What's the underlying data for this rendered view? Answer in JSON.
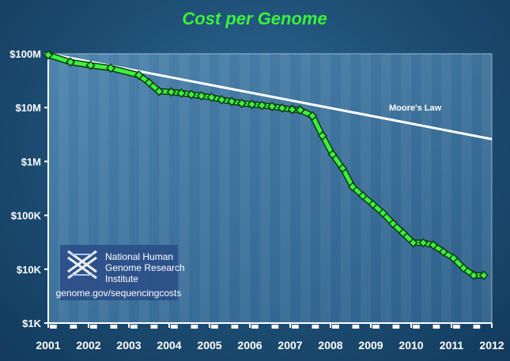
{
  "chart_data": {
    "type": "line",
    "title": "Cost per Genome",
    "y_scale": "log",
    "ylim": [
      1000,
      100000000
    ],
    "xlim": [
      2001,
      2012
    ],
    "yticks": [
      {
        "value": 100000000,
        "label": "$100M"
      },
      {
        "value": 10000000,
        "label": "$10M"
      },
      {
        "value": 1000000,
        "label": "$1M"
      },
      {
        "value": 100000,
        "label": "$100K"
      },
      {
        "value": 10000,
        "label": "$10K"
      },
      {
        "value": 1000,
        "label": "$1K"
      }
    ],
    "xticks": [
      {
        "value": 2001,
        "label": "2001"
      },
      {
        "value": 2002,
        "label": "2002"
      },
      {
        "value": 2003,
        "label": "2003"
      },
      {
        "value": 2004,
        "label": "2004"
      },
      {
        "value": 2005,
        "label": "2005"
      },
      {
        "value": 2006,
        "label": "2006"
      },
      {
        "value": 2007,
        "label": "2007"
      },
      {
        "value": 2008,
        "label": "2008"
      },
      {
        "value": 2009,
        "label": "2009"
      },
      {
        "value": 2010,
        "label": "2010"
      },
      {
        "value": 2011,
        "label": "2011"
      },
      {
        "value": 2012,
        "label": "2012"
      }
    ],
    "series": [
      {
        "color": "#3cf23c",
        "points": [
          [
            2001.0,
            95000000
          ],
          [
            2001.55,
            70000000
          ],
          [
            2002.05,
            61000000
          ],
          [
            2002.55,
            54000000
          ],
          [
            2003.25,
            40000000
          ],
          [
            2003.5,
            29000000
          ],
          [
            2003.75,
            20000000
          ],
          [
            2004.05,
            19500000
          ],
          [
            2004.3,
            18500000
          ],
          [
            2004.55,
            17500000
          ],
          [
            2004.8,
            16500000
          ],
          [
            2005.05,
            15500000
          ],
          [
            2005.3,
            14000000
          ],
          [
            2005.55,
            13000000
          ],
          [
            2005.8,
            12000000
          ],
          [
            2006.05,
            11500000
          ],
          [
            2006.3,
            11000000
          ],
          [
            2006.55,
            10500000
          ],
          [
            2006.8,
            9800000
          ],
          [
            2007.05,
            9200000
          ],
          [
            2007.25,
            9000000
          ],
          [
            2007.55,
            7000000
          ],
          [
            2007.8,
            3000000
          ],
          [
            2008.05,
            1350000
          ],
          [
            2008.3,
            750000
          ],
          [
            2008.55,
            340000
          ],
          [
            2008.8,
            230000
          ],
          [
            2009.05,
            160000
          ],
          [
            2009.3,
            110000
          ],
          [
            2009.55,
            70000
          ],
          [
            2009.8,
            47000
          ],
          [
            2010.05,
            31000
          ],
          [
            2010.3,
            31000
          ],
          [
            2010.55,
            28000
          ],
          [
            2010.8,
            21000
          ],
          [
            2011.05,
            16000
          ],
          [
            2011.3,
            10500
          ],
          [
            2011.55,
            7700
          ],
          [
            2011.8,
            7700
          ]
        ]
      },
      {
        "name": "Moore's Law",
        "color": "#ffffff",
        "points": [
          [
            2001.0,
            100000000
          ],
          [
            2012.0,
            2600000
          ]
        ]
      }
    ],
    "annotations": [
      {
        "text": "Moore's Law",
        "x": 2010.1,
        "y": 10000000
      }
    ],
    "grid": false
  },
  "logo": {
    "org_line1": "National Human",
    "org_line2": "Genome Research",
    "org_line3": "Institute",
    "url": "genome.gov/sequencingcosts"
  }
}
